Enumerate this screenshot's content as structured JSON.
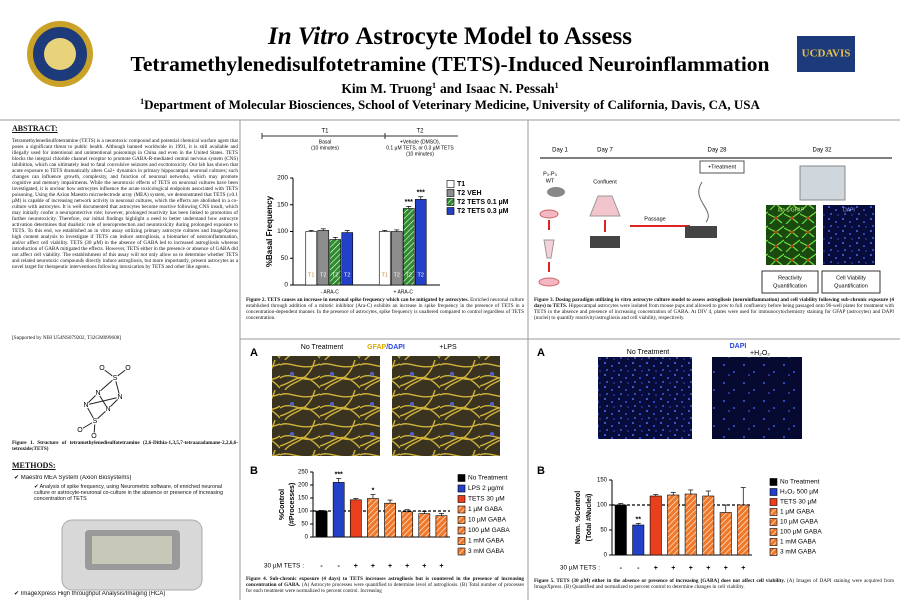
{
  "header": {
    "title_italic": "In Vitro",
    "title_line1": "Astrocyte Model to Assess",
    "title_line2": "Tetramethylenedisulfotetramine (TETS)-Induced Neuroinflammation",
    "authors": [
      {
        "name": "Kim M. Truong",
        "sup": "1"
      },
      {
        "name": "Isaac N. Pessah",
        "sup": "1"
      }
    ],
    "authors_joiner": "and",
    "affiliation": {
      "sup": "1",
      "text": "Department of Molecular Biosciences, School of Veterinary Medicine, University of California, Davis, CA, USA"
    },
    "logo_right": "UCDAVIS"
  },
  "abstract": {
    "heading": "ABSTRACT:",
    "text": "Tetramethylenedisulfotetramine (TETS) is a neurotoxic compound and potential chemical warfare agent that poses a significant threat to public health. Although banned worldwide in 1991, it is still available and illegally used for intentional and unintentional poisonings in China and even in the United States. TETS blocks the integral chloride channel receptor to promote GABA-R-mediated central nervous system (CNS) inhibition, which can ultimately lead to fatal convulsive seizures and excitotoxicity. Our lab has shown that acute exposure to TETS dramatically alters Ca2+ dynamics in primary hippocampal neuronal cultures; such changes can influence growth, complexity, and function of neuronal networks, which may promote cognitive and memory impairments. While the neurotoxic effects of TETS on neuronal cultures have been investigated, it is unclear how astrocytes influence the acute toxicological endpoints associated with TETS poisoning. Using the Axion Maestro microelectrode array (MEA) system, we demonstrated that TETS (≥0.1 µM) is capable of increasing network activity in neuronal cultures, which the effects are abolished in a co-culture with astrocytes. It is well documented that astrocytes become reactive following CNS insult, which may initially confer a neuroprotective role; however, prolonged reactivity has been linked to promotion of further neurotoxicity. Therefore, our initial findings highlight a need to better understand how astrocyte activation determines that dualistic role of neuroprotection and neurotoxicity during prolonged exposure to TETS. To this end, we established an in vitro assay utilizing primary astrocyte cultures and ImageXpress high content analysis to investigate if TETS can induce astrogliosis, a biomarker of neuroinflammation, and/or affect cell viability. TETS (30 µM) in the absence of GABA led to increased astrogliosis whereas introduction of GABA mitigated the effects. However, TETS either in the presence or absence of GABA did not affect cell viability. The establishment of this assay will not only allow us to determine whether TETS and related neurotoxic compounds directly induce astrogliosis, but more importantly, present astrocytes as a novel target for therapeutic interventions following intoxication by TETS and other like agents.",
    "funding": "[Supported by NIH U54NS079202, T32GM099608]"
  },
  "figure1": {
    "atoms": [
      "O",
      "S",
      "O",
      "N",
      "N",
      "N",
      "N",
      "O",
      "S",
      "O"
    ],
    "caption_title": "Figure 1. Structure of tetramethylenedisulfotetramine (2,6-Dithia-1,3,5,7-tetraazadamane-2,2,6,6-tetroxide;TETS)"
  },
  "methods": {
    "heading": "METHODS:",
    "items": [
      "✔ Maestro MEA System (Axion Biosystems)",
      "✔ ImageXpress High throughput Analysis/Imaging (HCA)"
    ],
    "subitems": [
      "✔ Analysis of spike frequency, using Neurometric software, of enriched neuronal culture or astrocyte-neuronal co-culture in the absence or presence of increasing concentration of TETS"
    ]
  },
  "figure2": {
    "timeline": [
      {
        "label": "T1",
        "lines": [
          "Basal",
          "(10 minutes)"
        ]
      },
      {
        "label": "T2",
        "lines": [
          "+Vehicle (DMSO),",
          "0.1 µM TETS, or 0.3 µM TETS",
          "(10 minutes)"
        ]
      }
    ],
    "caption_title": "Figure 2. TETS causes an increase in neuronal spike frequency which can be mitigated by astrocytes.",
    "caption": "Enriched neuronal culture established through addition of a mitotic inhibitor (Ara-C) exhibits an increase in spike frequency in the presence of TETS in a concentration-dependent manner. In the presence of astrocytes, spike frequency is unaltered compared to control regardless of TETS concentration."
  },
  "figure3": {
    "days": [
      "Day 1",
      "Day 7",
      "Day 28",
      "Day 32"
    ],
    "mouse_label": [
      "P₀-P₃",
      "WT"
    ],
    "confluent": "Confluent",
    "passage": "Passage",
    "treatment": "+Treatment",
    "stain_left": "Iba-1/GFAP",
    "stain_right": "DAPI",
    "box_left": [
      "Reactivity",
      "Quantification"
    ],
    "box_right": [
      "Cell Viability",
      "Quantification"
    ],
    "caption_title": "Figure 3. Dosing paradigm utilizing in vitro astrocyte culture model to assess astrogliosis (neuroinflammation) and cell viability following sub-chronic exposure (4 days) to TETS.",
    "caption": "Hippocampal astrocytes were isolated from mouse pups and allowed to grow to full confluency before being passaged onto 96-well plates for treatment with TETS in the absence and presence of increasing concentration of GABA. At DIV 4, plates were used for immunocytochemistry staining for GFAP (astrocytes) and DAPI (nuclei) to quantify reactivity/astrogliosis and cell viability, respectively."
  },
  "figure4": {
    "panel_a": "A",
    "panel_b": "B",
    "image_left": "No Treatment",
    "stain": [
      "GFAP",
      "/DAPI"
    ],
    "image_right": "+LPS",
    "caption_title": "Figure 4. Sub-chronic exposure (4 days) to TETS increases astrogliosis but is countered in the presence of increasing concentration of GABA.",
    "caption": "(A) Astrocyte processes were quantified to determine level of astrogliosis. (B) Total number of processes for each treatment were normalized to percent control. Increasing"
  },
  "figure5": {
    "panel_a": "A",
    "panel_b": "B",
    "image_left": "No Treatment",
    "stain": "DAPI",
    "image_right": "+H₂O₂",
    "caption_title": "Figure 5. TETS (30 µM) either in the absence or presence of increasing [GABA] does not affect cell viability.",
    "caption": "(A) Images of DAPI staining were acquired from ImageXpress. (B) Quantified and normalized to percent control to determine changes in cell viability."
  },
  "chart_data": [
    {
      "type": "bar",
      "y_label": [
        "%Basal Frequency"
      ],
      "categories": [
        "- ARA-C",
        "+ ARA-C"
      ],
      "ylim": [
        0,
        200
      ],
      "yticks": [
        0,
        50,
        100,
        150,
        200
      ],
      "series": [
        {
          "name": "T1",
          "color": "#ffffff",
          "bar_label": "T1",
          "values": [
            100,
            100
          ],
          "errors": [
            2,
            2
          ]
        },
        {
          "name": "T2 VEH",
          "color": "#8c8c8c",
          "bar_label": "T2",
          "values": [
            102,
            100
          ],
          "errors": [
            3,
            3
          ]
        },
        {
          "name": "T2 TETS 0.1 µM",
          "color": "#2e8b2e",
          "hatch": true,
          "bar_label": "T2",
          "values": [
            85,
            143
          ],
          "errors": [
            4,
            4
          ],
          "annotations": [
            null,
            "***"
          ]
        },
        {
          "name": "T2 TETS 0.3 µM",
          "color": "#2340c8",
          "bar_label": "T2",
          "values": [
            98,
            160
          ],
          "errors": [
            4,
            5
          ],
          "annotations": [
            null,
            "***"
          ]
        }
      ]
    },
    {
      "type": "bar",
      "y_label": [
        "%Control",
        "(#Processes)"
      ],
      "categories": [
        "No Treatment",
        "LPS 2 µg/ml",
        "TETS 30 µM",
        "1 µM GABA",
        "10 µM GABA",
        "100 µM GABA",
        "1 mM GABA",
        "3 mM GABA"
      ],
      "values": [
        100,
        210,
        143,
        148,
        130,
        97,
        90,
        82
      ],
      "errors": [
        2,
        15,
        5,
        15,
        12,
        8,
        8,
        9
      ],
      "colors": [
        "#000000",
        "#2340c8",
        "#e8401c",
        "#f07828",
        "#f07828",
        "#f07828",
        "#f07828",
        "#f07828"
      ],
      "hatch": [
        false,
        false,
        false,
        true,
        true,
        true,
        true,
        true
      ],
      "annotations": [
        null,
        "***",
        null,
        "*",
        null,
        null,
        null,
        null
      ],
      "ylim": [
        0,
        250
      ],
      "yticks": [
        0,
        50,
        100,
        150,
        200,
        250
      ],
      "reference_line": 100,
      "treatment_label": "30 µM TETS :",
      "treatment": [
        "-",
        "-",
        "+",
        "+",
        "+",
        "+",
        "+",
        "+"
      ]
    },
    {
      "type": "bar",
      "y_label": [
        "Norm. %Control",
        "(Total #Nuclei)"
      ],
      "categories": [
        "No Treatment",
        "H₂O₂ 500 µM",
        "TETS 30 µM",
        "1 µM GABA",
        "10 µM GABA",
        "100 µM GABA",
        "1 mM GABA",
        "3 mM GABA"
      ],
      "values": [
        100,
        60,
        118,
        120,
        122,
        118,
        85,
        100
      ],
      "errors": [
        3,
        3,
        3,
        5,
        8,
        10,
        15,
        35
      ],
      "colors": [
        "#000000",
        "#2340c8",
        "#e8401c",
        "#f07828",
        "#f07828",
        "#f07828",
        "#f07828",
        "#f07828"
      ],
      "hatch": [
        false,
        false,
        false,
        true,
        true,
        true,
        true,
        true
      ],
      "annotations": [
        null,
        "**",
        null,
        null,
        null,
        null,
        null,
        null
      ],
      "ylim": [
        0,
        150
      ],
      "yticks": [
        0,
        50,
        100,
        150
      ],
      "reference_line": 100,
      "treatment_label": "30 µM TETS :",
      "treatment": [
        "-",
        "-",
        "+",
        "+",
        "+",
        "+",
        "+",
        "+"
      ]
    }
  ]
}
